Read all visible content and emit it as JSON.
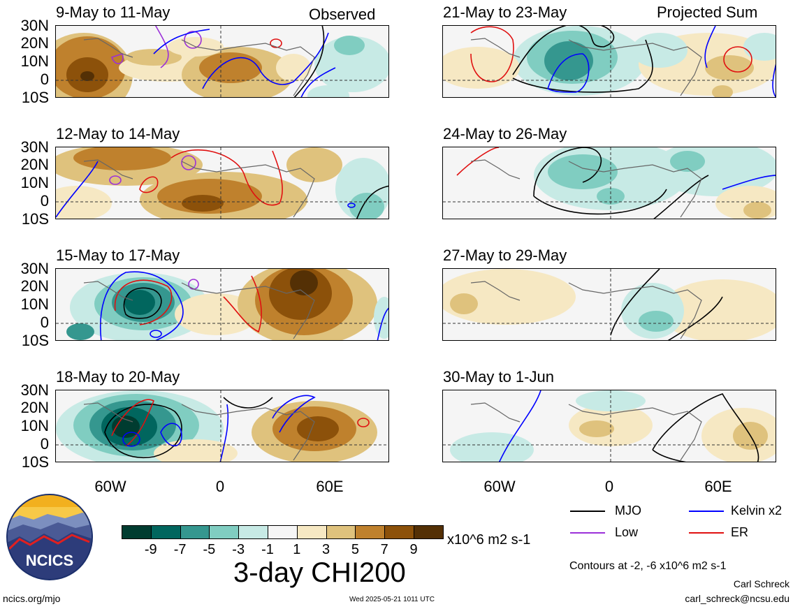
{
  "panels_left": [
    {
      "title": "9-May to 11-May",
      "tag": "Observed"
    },
    {
      "title": "12-May to 14-May",
      "tag": ""
    },
    {
      "title": "15-May to 17-May",
      "tag": ""
    },
    {
      "title": "18-May to 20-May",
      "tag": ""
    }
  ],
  "panels_right": [
    {
      "title": "21-May to 23-May",
      "tag": "Projected Sum"
    },
    {
      "title": "24-May to 26-May",
      "tag": ""
    },
    {
      "title": "27-May to 29-May",
      "tag": ""
    },
    {
      "title": "30-May to 1-Jun",
      "tag": ""
    }
  ],
  "lat_labels": [
    "30N",
    "20N",
    "10N",
    "0",
    "10S"
  ],
  "lon_labels": [
    "60W",
    "0",
    "60E"
  ],
  "legend": {
    "mjo": "MJO",
    "low": "Low",
    "kelvin": "Kelvin x2",
    "er": "ER",
    "colors": {
      "mjo": "#000000",
      "low": "#9b30d9",
      "kelvin": "#0000ff",
      "er": "#e01010"
    }
  },
  "colorbar": {
    "labels": [
      "-9",
      "-7",
      "-5",
      "-3",
      "-1",
      "1",
      "3",
      "5",
      "7",
      "9"
    ],
    "units": "x10^6 m2 s-1",
    "colors": [
      "#003c30",
      "#01665e",
      "#35978f",
      "#80cdc1",
      "#c7eae5",
      "#f5f5f5",
      "#f6e8c3",
      "#dfc27d",
      "#bf812d",
      "#8c510a",
      "#543005"
    ]
  },
  "main_title": "3-day CHI200",
  "contours_note": "Contours at -2, -6 x10^6 m2 s-1",
  "author": "Carl Schreck",
  "email": "carl_schreck@ncsu.edu",
  "url": "ncics.org/mjo",
  "timestamp": "Wed 2025-05-21 1011 UTC",
  "logo_text": "NCICS"
}
